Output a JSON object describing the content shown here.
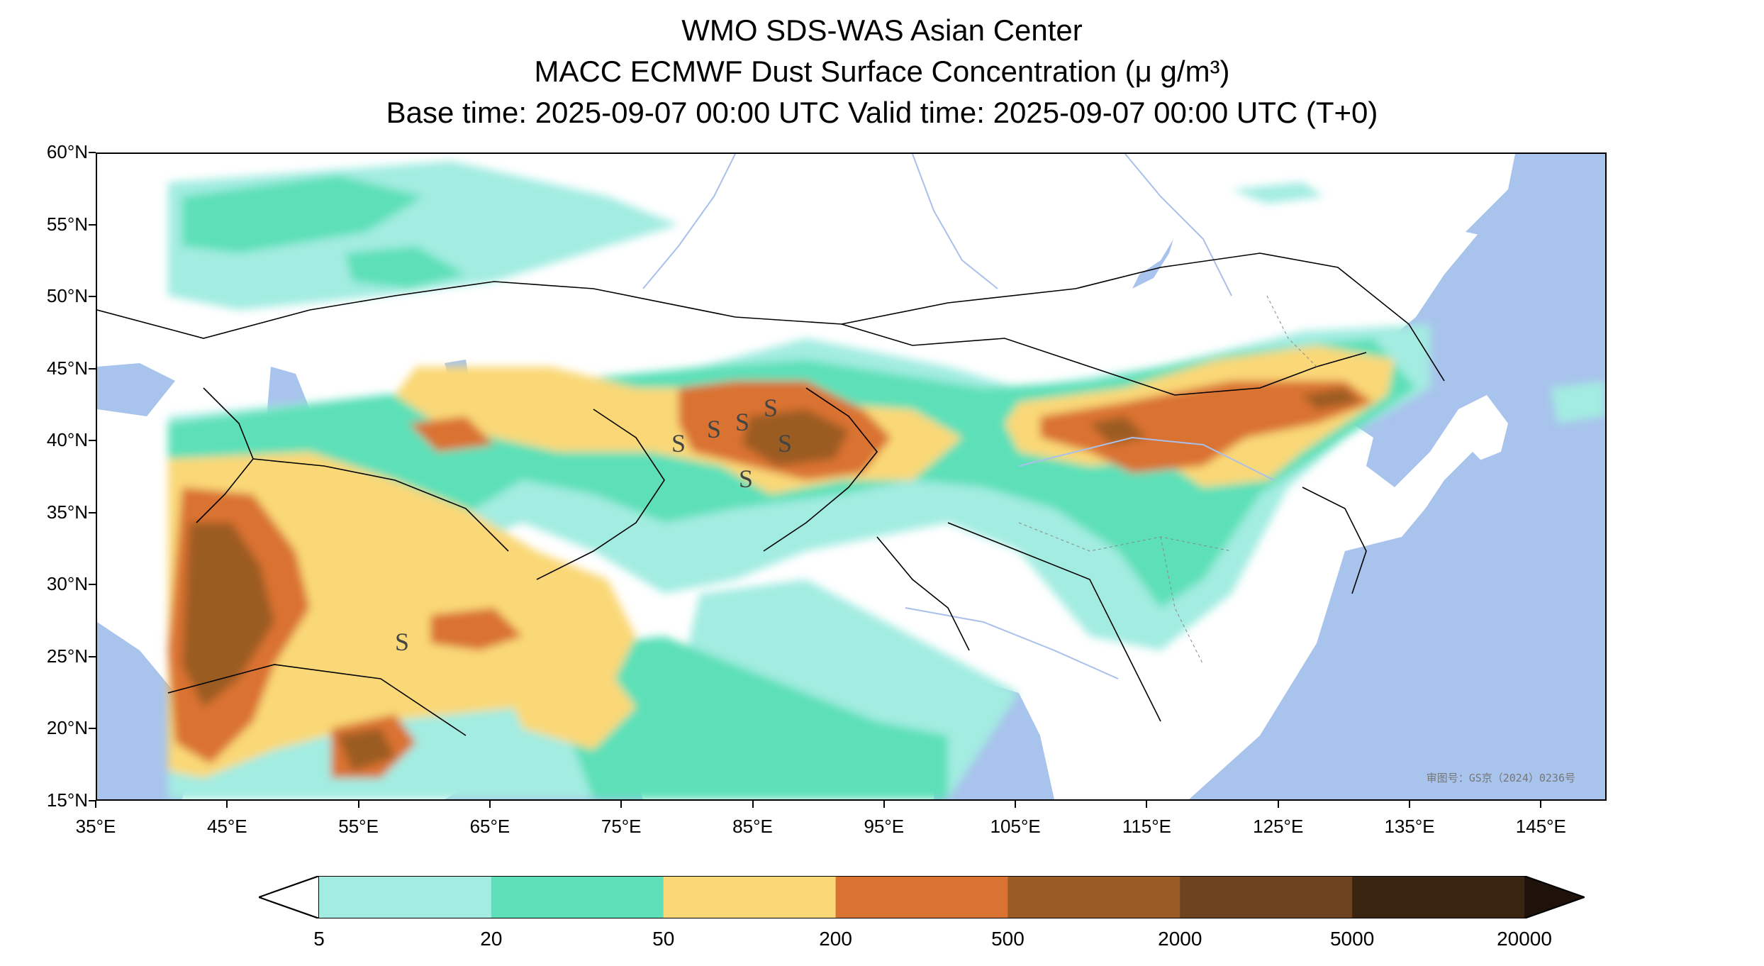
{
  "title": {
    "line1": "WMO SDS-WAS Asian Center",
    "line2": "MACC ECMWF Dust Surface Concentration (μ g/m³)",
    "line3": "Base time: 2025-09-07 00:00 UTC Valid time: 2025-09-07 00:00 UTC (T+0)"
  },
  "map": {
    "lon_range": [
      35,
      150
    ],
    "lat_range": [
      15,
      60
    ],
    "lon_ticks": [
      "35°E",
      "45°E",
      "55°E",
      "65°E",
      "75°E",
      "85°E",
      "95°E",
      "105°E",
      "115°E",
      "125°E",
      "135°E",
      "145°E"
    ],
    "lat_ticks": [
      "60°N",
      "55°N",
      "50°N",
      "45°N",
      "40°N",
      "35°N",
      "30°N",
      "25°N",
      "20°N",
      "15°N"
    ],
    "watermark": "审图号：GS京（2024）0236号",
    "colors": {
      "ocean": "#a8c3ec",
      "land": "#ffffff",
      "river": "#a9c0ea",
      "border": "#000000"
    },
    "feature_icons": [
      "sand-storm-symbol"
    ]
  },
  "colorbar": {
    "levels": [
      "5",
      "20",
      "50",
      "200",
      "500",
      "2000",
      "5000",
      "20000"
    ],
    "colors": [
      "#a3ece1",
      "#5de0b8",
      "#fad877",
      "#da7232",
      "#9b5b24",
      "#6e4420",
      "#3a2513"
    ],
    "under_color": "#ffffff",
    "over_color": "#1e120a"
  }
}
